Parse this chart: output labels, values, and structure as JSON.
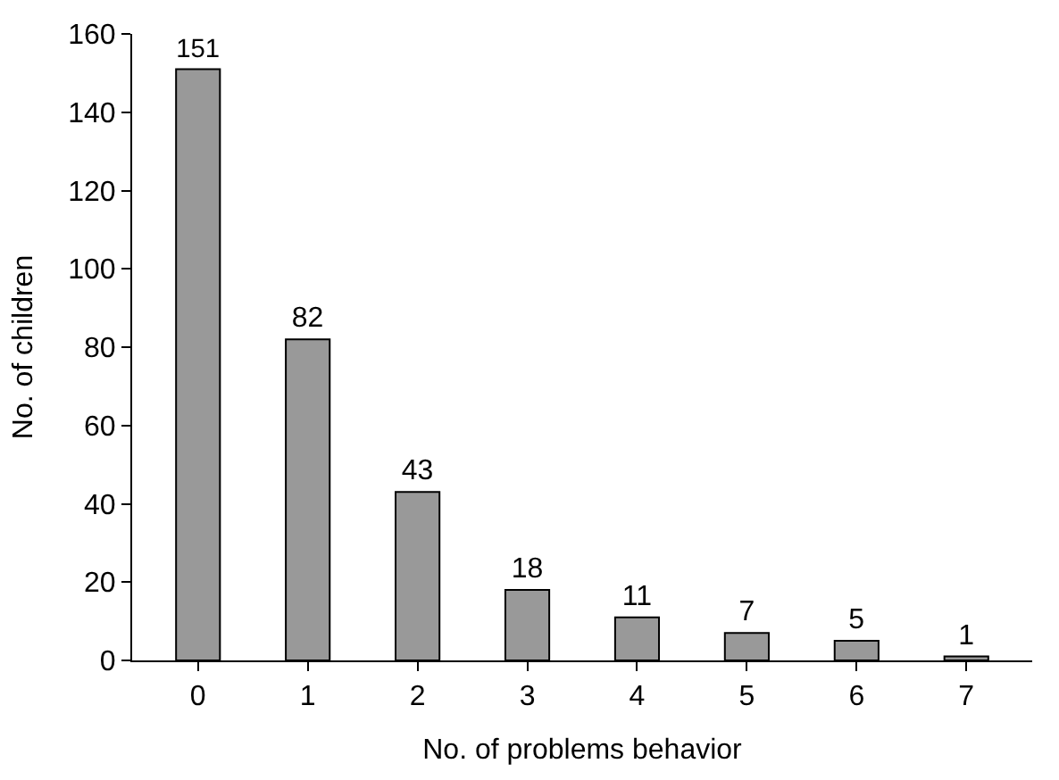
{
  "chart_data": {
    "type": "bar",
    "xlabel": "No. of problems behavior",
    "ylabel": "No. of children",
    "categories": [
      "0",
      "1",
      "2",
      "3",
      "4",
      "5",
      "6",
      "7"
    ],
    "values": [
      151,
      82,
      43,
      18,
      11,
      7,
      5,
      1
    ],
    "color": "#999999",
    "ylim": [
      0,
      160
    ],
    "yticks": [
      0,
      20,
      40,
      60,
      80,
      100,
      120,
      140,
      160
    ],
    "data_labels": true
  }
}
